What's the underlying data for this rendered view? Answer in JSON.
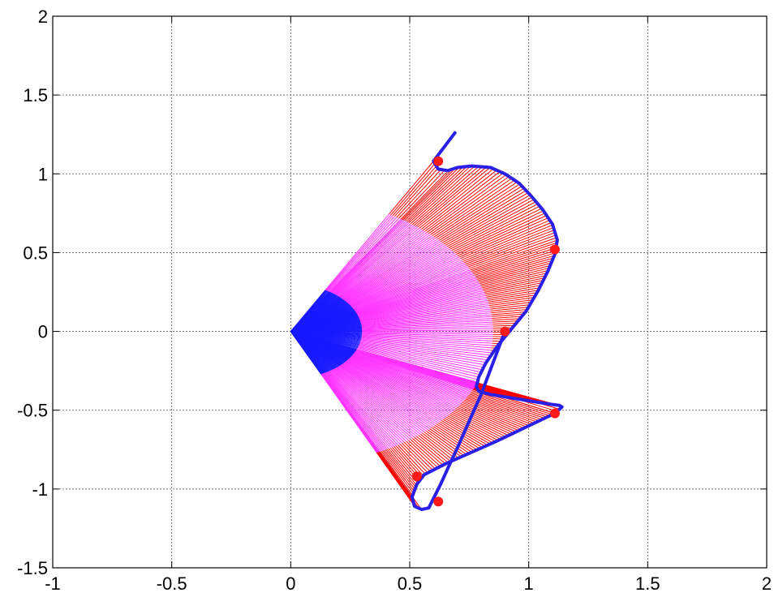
{
  "chart_data": {
    "type": "line",
    "title": "",
    "xlabel": "",
    "ylabel": "",
    "xlim": [
      -1,
      2
    ],
    "ylim": [
      -1.5,
      2
    ],
    "grid": true,
    "x_ticks": [
      "-1",
      "-0.5",
      "0",
      "0.5",
      "1",
      "1.5",
      "2"
    ],
    "y_ticks": [
      "2",
      "1.5",
      "1",
      "0.5",
      "0",
      "-0.5",
      "-1",
      "-1.5"
    ],
    "colors": {
      "path": "#2a1fe6",
      "points": "#ff1a1a",
      "rays_inner": "#1a1aff",
      "rays_mid": "#ff33ff",
      "rays_outer": "#ff0000"
    },
    "series": [
      {
        "type": "boundary",
        "x": [
          0.69,
          0.66,
          0.6,
          0.62,
          0.66,
          0.7,
          0.76,
          0.84,
          0.9,
          0.96,
          1.01,
          1.06,
          1.1,
          1.12,
          1.11,
          1.08,
          1.04,
          0.99,
          0.93,
          0.87,
          0.82,
          0.79,
          0.78,
          0.79,
          0.84,
          0.92,
          1.0,
          1.08,
          1.13,
          1.14,
          1.11
        ],
        "y": [
          1.26,
          1.2,
          1.08,
          1.03,
          1.02,
          1.04,
          1.05,
          1.04,
          1.0,
          0.94,
          0.86,
          0.77,
          0.68,
          0.58,
          0.49,
          0.38,
          0.26,
          0.13,
          0.02,
          -0.09,
          -0.2,
          -0.29,
          -0.35,
          -0.38,
          -0.4,
          -0.42,
          -0.44,
          -0.46,
          -0.47,
          -0.48,
          -0.52
        ]
      },
      {
        "type": "path",
        "x": [
          1.11,
          0.86,
          0.65,
          0.56,
          0.53,
          0.51,
          0.52,
          0.55,
          0.58,
          0.6,
          0.63,
          0.66,
          0.7,
          0.75,
          0.8,
          0.84,
          0.87,
          0.89,
          0.9
        ],
        "y": [
          -0.52,
          -0.7,
          -0.84,
          -0.91,
          -0.97,
          -1.05,
          -1.11,
          -1.13,
          -1.12,
          -1.06,
          -0.97,
          -0.87,
          -0.74,
          -0.57,
          -0.4,
          -0.24,
          -0.12,
          -0.04,
          0.0
        ]
      }
    ],
    "points": [
      {
        "x": 0.62,
        "y": 1.08
      },
      {
        "x": 1.11,
        "y": 0.52
      },
      {
        "x": 0.9,
        "y": 0.0
      },
      {
        "x": 1.11,
        "y": -0.52
      },
      {
        "x": 0.53,
        "y": -0.92
      },
      {
        "x": 0.62,
        "y": -1.08
      }
    ]
  }
}
